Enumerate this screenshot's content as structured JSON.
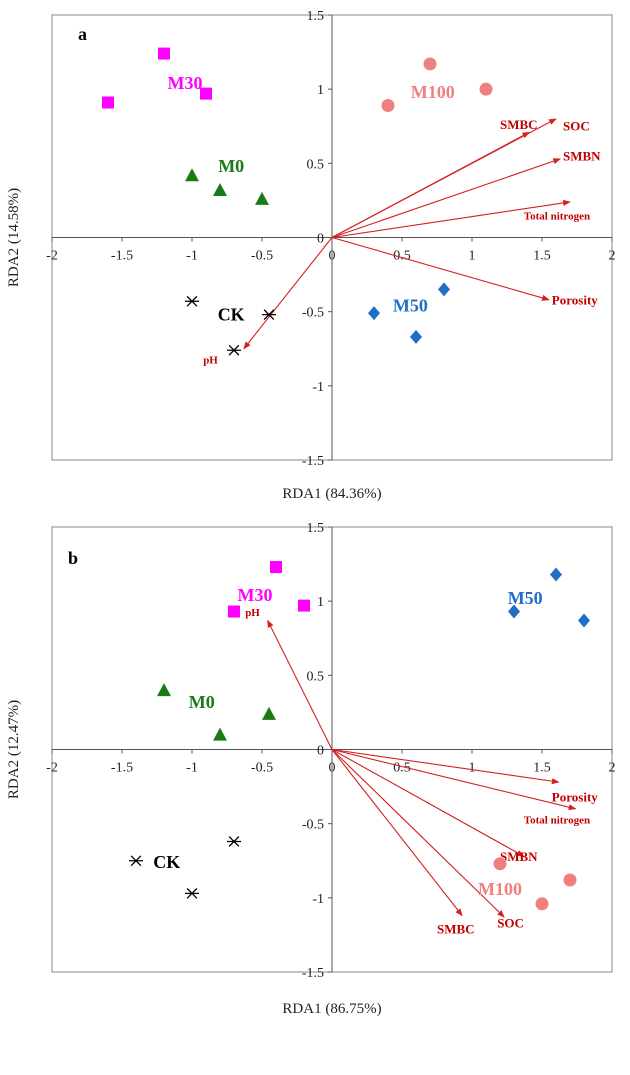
{
  "chart_data": [
    {
      "type": "scatter",
      "panel": "a",
      "title": "",
      "xlabel": "RDA1 (84.36%)",
      "ylabel": "RDA2 (14.58%)",
      "xlim": [
        -2,
        2
      ],
      "ylim": [
        -1.5,
        1.5
      ],
      "xticks": [
        "-2",
        "-1.5",
        "-1",
        "-0.5",
        "0",
        "0.5",
        "1",
        "1.5",
        "2"
      ],
      "yticks": [
        "1.5",
        "1",
        "0.5",
        "0",
        "-0.5",
        "-1",
        "-1.5"
      ],
      "groups": [
        {
          "name": "M30",
          "marker": "square",
          "color": "#ff00ff",
          "points": [
            [
              -1.6,
              0.91
            ],
            [
              -1.2,
              1.24
            ],
            [
              -0.9,
              0.97
            ]
          ],
          "label_at": [
            -1.05,
            1.0
          ]
        },
        {
          "name": "M100",
          "marker": "circle",
          "color": "#f08080",
          "points": [
            [
              0.4,
              0.89
            ],
            [
              0.7,
              1.17
            ],
            [
              1.1,
              1.0
            ]
          ],
          "label_at": [
            0.72,
            0.94
          ]
        },
        {
          "name": "M0",
          "marker": "triangle",
          "color": "#1a7a1a",
          "points": [
            [
              -1.0,
              0.42
            ],
            [
              -0.8,
              0.32
            ],
            [
              -0.5,
              0.26
            ]
          ],
          "label_at": [
            -0.72,
            0.44
          ]
        },
        {
          "name": "CK",
          "marker": "asterisk",
          "color": "#000000",
          "points": [
            [
              -1.0,
              -0.43
            ],
            [
              -0.7,
              -0.76
            ],
            [
              -0.45,
              -0.52
            ]
          ],
          "label_at": [
            -0.72,
            -0.56
          ]
        },
        {
          "name": "M50",
          "marker": "diamond",
          "color": "#1f6fc6",
          "points": [
            [
              0.3,
              -0.51
            ],
            [
              0.6,
              -0.67
            ],
            [
              0.8,
              -0.35
            ]
          ],
          "label_at": [
            0.56,
            -0.5
          ]
        }
      ],
      "vectors": [
        {
          "name": "SMBC",
          "x": 1.41,
          "y": 0.71,
          "label_at": [
            1.2,
            0.73
          ],
          "anchor": "start"
        },
        {
          "name": "SOC",
          "x": 1.6,
          "y": 0.8,
          "label_at": [
            1.65,
            0.72
          ],
          "anchor": "start"
        },
        {
          "name": "SMBN",
          "x": 1.63,
          "y": 0.53,
          "label_at": [
            1.65,
            0.52
          ],
          "anchor": "start"
        },
        {
          "name": "Total nitrogen",
          "x": 1.7,
          "y": 0.24,
          "label_at": [
            1.37,
            0.12
          ],
          "anchor": "start"
        },
        {
          "name": "Porosity",
          "x": 1.55,
          "y": -0.42,
          "label_at": [
            1.57,
            -0.45
          ],
          "anchor": "start"
        },
        {
          "name": "pH",
          "x": -0.63,
          "y": -0.75,
          "label_at": [
            -0.92,
            -0.85
          ],
          "anchor": "start"
        }
      ]
    },
    {
      "type": "scatter",
      "panel": "b",
      "title": "",
      "xlabel": "RDA1 (86.75%)",
      "ylabel": "RDA2 (12.47%)",
      "xlim": [
        -2,
        2
      ],
      "ylim": [
        -1.5,
        1.5
      ],
      "xticks": [
        "-2",
        "-1.5",
        "-1",
        "-0.5",
        "0",
        "0.5",
        "1",
        "1.5",
        "2"
      ],
      "yticks": [
        "1.5",
        "1",
        "0.5",
        "0",
        "-0.5",
        "-1",
        "-1.5"
      ],
      "groups": [
        {
          "name": "M30",
          "marker": "square",
          "color": "#ff00ff",
          "points": [
            [
              -0.7,
              0.93
            ],
            [
              -0.4,
              1.23
            ],
            [
              -0.2,
              0.97
            ]
          ],
          "label_at": [
            -0.55,
            1.0
          ]
        },
        {
          "name": "M50",
          "marker": "diamond",
          "color": "#1f6fc6",
          "points": [
            [
              1.3,
              0.93
            ],
            [
              1.6,
              1.18
            ],
            [
              1.8,
              0.87
            ]
          ],
          "label_at": [
            1.38,
            0.98
          ]
        },
        {
          "name": "M0",
          "marker": "triangle",
          "color": "#1a7a1a",
          "points": [
            [
              -1.2,
              0.4
            ],
            [
              -0.8,
              0.1
            ],
            [
              -0.45,
              0.24
            ]
          ],
          "label_at": [
            -0.93,
            0.28
          ]
        },
        {
          "name": "CK",
          "marker": "asterisk",
          "color": "#000000",
          "points": [
            [
              -1.4,
              -0.75
            ],
            [
              -1.0,
              -0.97
            ],
            [
              -0.7,
              -0.62
            ]
          ],
          "label_at": [
            -1.18,
            -0.8
          ]
        },
        {
          "name": "M100",
          "marker": "circle",
          "color": "#f08080",
          "points": [
            [
              1.2,
              -0.77
            ],
            [
              1.5,
              -1.04
            ],
            [
              1.7,
              -0.88
            ]
          ],
          "label_at": [
            1.2,
            -0.98
          ]
        }
      ],
      "vectors": [
        {
          "name": "pH",
          "x": -0.46,
          "y": 0.87,
          "label_at": [
            -0.62,
            0.9
          ],
          "anchor": "start"
        },
        {
          "name": "Porosity",
          "x": 1.62,
          "y": -0.22,
          "label_at": [
            1.57,
            -0.35
          ],
          "anchor": "start"
        },
        {
          "name": "Total nitrogen",
          "x": 1.74,
          "y": -0.4,
          "label_at": [
            1.37,
            -0.5
          ],
          "anchor": "start"
        },
        {
          "name": "SMBN",
          "x": 1.37,
          "y": -0.72,
          "label_at": [
            1.2,
            -0.75
          ],
          "anchor": "start"
        },
        {
          "name": "SMBC",
          "x": 0.93,
          "y": -1.12,
          "label_at": [
            0.75,
            -1.24
          ],
          "anchor": "start"
        },
        {
          "name": "SOC",
          "x": 1.23,
          "y": -1.13,
          "label_at": [
            1.18,
            -1.2
          ],
          "anchor": "start"
        }
      ]
    }
  ]
}
